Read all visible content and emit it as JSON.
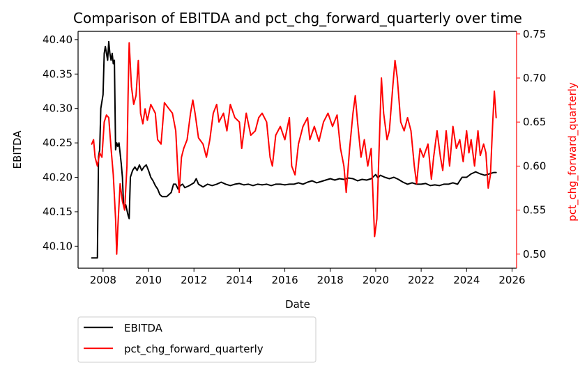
{
  "chart_data": {
    "type": "line",
    "title": "Comparison of EBITDA and pct_chg_forward_quarterly over time",
    "xlabel": "Date",
    "ylabel_left": "EBITDA",
    "ylabel_right": "pct_chg_forward_quarterly",
    "x_range": [
      2006.9,
      2026.2
    ],
    "ylim_left": [
      40.068,
      40.412
    ],
    "ylim_right": [
      0.484,
      0.753
    ],
    "x_ticks": [
      {
        "value": 2008,
        "label": "2008"
      },
      {
        "value": 2010,
        "label": "2010"
      },
      {
        "value": 2012,
        "label": "2012"
      },
      {
        "value": 2014,
        "label": "2014"
      },
      {
        "value": 2016,
        "label": "2016"
      },
      {
        "value": 2018,
        "label": "2018"
      },
      {
        "value": 2020,
        "label": "2020"
      },
      {
        "value": 2022,
        "label": "2022"
      },
      {
        "value": 2024,
        "label": "2024"
      },
      {
        "value": 2026,
        "label": "2026"
      }
    ],
    "y_left_ticks": [
      {
        "value": 40.1,
        "label": "40.10"
      },
      {
        "value": 40.15,
        "label": "40.15"
      },
      {
        "value": 40.2,
        "label": "40.20"
      },
      {
        "value": 40.25,
        "label": "40.25"
      },
      {
        "value": 40.3,
        "label": "40.30"
      },
      {
        "value": 40.35,
        "label": "40.35"
      },
      {
        "value": 40.4,
        "label": "40.40"
      }
    ],
    "y_right_ticks": [
      {
        "value": 0.5,
        "label": "0.50"
      },
      {
        "value": 0.55,
        "label": "0.55"
      },
      {
        "value": 0.6,
        "label": "0.60"
      },
      {
        "value": 0.65,
        "label": "0.65"
      },
      {
        "value": 0.7,
        "label": "0.70"
      },
      {
        "value": 0.75,
        "label": "0.75"
      }
    ],
    "grid": false,
    "legend_position": "below-left",
    "series": [
      {
        "name": "EBITDA",
        "axis": "left",
        "color": "#000000",
        "points": [
          [
            2007.5,
            40.083
          ],
          [
            2007.58,
            40.083
          ],
          [
            2007.75,
            40.083
          ],
          [
            2007.8,
            40.23
          ],
          [
            2007.85,
            40.24
          ],
          [
            2007.9,
            40.3
          ],
          [
            2007.95,
            40.31
          ],
          [
            2008.0,
            40.32
          ],
          [
            2008.05,
            40.38
          ],
          [
            2008.1,
            40.39
          ],
          [
            2008.15,
            40.38
          ],
          [
            2008.2,
            40.37
          ],
          [
            2008.25,
            40.397
          ],
          [
            2008.3,
            40.38
          ],
          [
            2008.35,
            40.37
          ],
          [
            2008.4,
            40.38
          ],
          [
            2008.45,
            40.365
          ],
          [
            2008.5,
            40.37
          ],
          [
            2008.55,
            40.24
          ],
          [
            2008.6,
            40.25
          ],
          [
            2008.65,
            40.245
          ],
          [
            2008.7,
            40.25
          ],
          [
            2008.75,
            40.235
          ],
          [
            2008.8,
            40.22
          ],
          [
            2008.85,
            40.2
          ],
          [
            2008.9,
            40.16
          ],
          [
            2008.95,
            40.155
          ],
          [
            2009.0,
            40.16
          ],
          [
            2009.1,
            40.145
          ],
          [
            2009.15,
            40.14
          ],
          [
            2009.2,
            40.2
          ],
          [
            2009.3,
            40.21
          ],
          [
            2009.4,
            40.215
          ],
          [
            2009.5,
            40.21
          ],
          [
            2009.6,
            40.218
          ],
          [
            2009.7,
            40.21
          ],
          [
            2009.8,
            40.215
          ],
          [
            2009.9,
            40.218
          ],
          [
            2010.0,
            40.21
          ],
          [
            2010.1,
            40.2
          ],
          [
            2010.2,
            40.195
          ],
          [
            2010.3,
            40.188
          ],
          [
            2010.4,
            40.183
          ],
          [
            2010.5,
            40.175
          ],
          [
            2010.6,
            40.172
          ],
          [
            2010.8,
            40.172
          ],
          [
            2010.9,
            40.175
          ],
          [
            2011.0,
            40.178
          ],
          [
            2011.1,
            40.19
          ],
          [
            2011.2,
            40.19
          ],
          [
            2011.3,
            40.183
          ],
          [
            2011.4,
            40.188
          ],
          [
            2011.5,
            40.19
          ],
          [
            2011.6,
            40.185
          ],
          [
            2011.8,
            40.188
          ],
          [
            2012.0,
            40.192
          ],
          [
            2012.1,
            40.198
          ],
          [
            2012.2,
            40.19
          ],
          [
            2012.4,
            40.186
          ],
          [
            2012.6,
            40.19
          ],
          [
            2012.8,
            40.188
          ],
          [
            2013.0,
            40.19
          ],
          [
            2013.2,
            40.193
          ],
          [
            2013.4,
            40.19
          ],
          [
            2013.6,
            40.188
          ],
          [
            2013.8,
            40.19
          ],
          [
            2014.0,
            40.191
          ],
          [
            2014.2,
            40.189
          ],
          [
            2014.4,
            40.19
          ],
          [
            2014.6,
            40.188
          ],
          [
            2014.8,
            40.19
          ],
          [
            2015.0,
            40.189
          ],
          [
            2015.2,
            40.19
          ],
          [
            2015.4,
            40.188
          ],
          [
            2015.6,
            40.19
          ],
          [
            2015.8,
            40.19
          ],
          [
            2016.0,
            40.189
          ],
          [
            2016.2,
            40.19
          ],
          [
            2016.4,
            40.19
          ],
          [
            2016.6,
            40.192
          ],
          [
            2016.8,
            40.19
          ],
          [
            2017.0,
            40.193
          ],
          [
            2017.2,
            40.195
          ],
          [
            2017.4,
            40.192
          ],
          [
            2017.6,
            40.194
          ],
          [
            2017.8,
            40.196
          ],
          [
            2018.0,
            40.198
          ],
          [
            2018.2,
            40.196
          ],
          [
            2018.4,
            40.198
          ],
          [
            2018.6,
            40.197
          ],
          [
            2018.8,
            40.199
          ],
          [
            2019.0,
            40.198
          ],
          [
            2019.2,
            40.195
          ],
          [
            2019.4,
            40.197
          ],
          [
            2019.6,
            40.196
          ],
          [
            2019.8,
            40.198
          ],
          [
            2020.0,
            40.204
          ],
          [
            2020.1,
            40.199
          ],
          [
            2020.2,
            40.203
          ],
          [
            2020.4,
            40.2
          ],
          [
            2020.6,
            40.198
          ],
          [
            2020.8,
            40.2
          ],
          [
            2021.0,
            40.197
          ],
          [
            2021.2,
            40.193
          ],
          [
            2021.4,
            40.19
          ],
          [
            2021.6,
            40.192
          ],
          [
            2021.8,
            40.19
          ],
          [
            2022.0,
            40.19
          ],
          [
            2022.2,
            40.191
          ],
          [
            2022.4,
            40.188
          ],
          [
            2022.6,
            40.189
          ],
          [
            2022.8,
            40.188
          ],
          [
            2023.0,
            40.19
          ],
          [
            2023.2,
            40.19
          ],
          [
            2023.4,
            40.192
          ],
          [
            2023.6,
            40.19
          ],
          [
            2023.8,
            40.2
          ],
          [
            2024.0,
            40.2
          ],
          [
            2024.2,
            40.205
          ],
          [
            2024.4,
            40.208
          ],
          [
            2024.6,
            40.205
          ],
          [
            2024.8,
            40.203
          ],
          [
            2025.0,
            40.205
          ],
          [
            2025.2,
            40.207
          ],
          [
            2025.3,
            40.207
          ]
        ]
      },
      {
        "name": "pct_chg_forward_quarterly",
        "axis": "right",
        "color": "#ff0000",
        "points": [
          [
            2007.5,
            0.625
          ],
          [
            2007.58,
            0.63
          ],
          [
            2007.65,
            0.61
          ],
          [
            2007.75,
            0.6
          ],
          [
            2007.85,
            0.615
          ],
          [
            2007.95,
            0.61
          ],
          [
            2008.05,
            0.65
          ],
          [
            2008.15,
            0.658
          ],
          [
            2008.25,
            0.655
          ],
          [
            2008.35,
            0.62
          ],
          [
            2008.45,
            0.59
          ],
          [
            2008.55,
            0.54
          ],
          [
            2008.6,
            0.5
          ],
          [
            2008.65,
            0.53
          ],
          [
            2008.75,
            0.58
          ],
          [
            2008.85,
            0.56
          ],
          [
            2008.95,
            0.55
          ],
          [
            2009.05,
            0.6
          ],
          [
            2009.1,
            0.68
          ],
          [
            2009.15,
            0.74
          ],
          [
            2009.25,
            0.69
          ],
          [
            2009.35,
            0.67
          ],
          [
            2009.45,
            0.68
          ],
          [
            2009.55,
            0.72
          ],
          [
            2009.65,
            0.66
          ],
          [
            2009.75,
            0.648
          ],
          [
            2009.85,
            0.665
          ],
          [
            2009.95,
            0.652
          ],
          [
            2010.1,
            0.67
          ],
          [
            2010.3,
            0.66
          ],
          [
            2010.4,
            0.63
          ],
          [
            2010.55,
            0.625
          ],
          [
            2010.7,
            0.672
          ],
          [
            2010.9,
            0.665
          ],
          [
            2011.05,
            0.66
          ],
          [
            2011.2,
            0.64
          ],
          [
            2011.3,
            0.59
          ],
          [
            2011.35,
            0.57
          ],
          [
            2011.45,
            0.61
          ],
          [
            2011.55,
            0.62
          ],
          [
            2011.7,
            0.63
          ],
          [
            2011.85,
            0.66
          ],
          [
            2011.95,
            0.675
          ],
          [
            2012.05,
            0.66
          ],
          [
            2012.2,
            0.632
          ],
          [
            2012.4,
            0.625
          ],
          [
            2012.55,
            0.61
          ],
          [
            2012.7,
            0.63
          ],
          [
            2012.85,
            0.66
          ],
          [
            2013.0,
            0.67
          ],
          [
            2013.1,
            0.65
          ],
          [
            2013.3,
            0.66
          ],
          [
            2013.45,
            0.64
          ],
          [
            2013.6,
            0.67
          ],
          [
            2013.8,
            0.655
          ],
          [
            2014.0,
            0.65
          ],
          [
            2014.1,
            0.62
          ],
          [
            2014.3,
            0.66
          ],
          [
            2014.5,
            0.635
          ],
          [
            2014.7,
            0.64
          ],
          [
            2014.85,
            0.655
          ],
          [
            2015.0,
            0.66
          ],
          [
            2015.2,
            0.65
          ],
          [
            2015.35,
            0.61
          ],
          [
            2015.45,
            0.6
          ],
          [
            2015.6,
            0.635
          ],
          [
            2015.8,
            0.645
          ],
          [
            2016.0,
            0.63
          ],
          [
            2016.2,
            0.655
          ],
          [
            2016.3,
            0.6
          ],
          [
            2016.45,
            0.59
          ],
          [
            2016.6,
            0.625
          ],
          [
            2016.8,
            0.645
          ],
          [
            2017.0,
            0.655
          ],
          [
            2017.1,
            0.63
          ],
          [
            2017.3,
            0.645
          ],
          [
            2017.5,
            0.628
          ],
          [
            2017.7,
            0.65
          ],
          [
            2017.9,
            0.66
          ],
          [
            2018.1,
            0.645
          ],
          [
            2018.3,
            0.658
          ],
          [
            2018.45,
            0.62
          ],
          [
            2018.6,
            0.6
          ],
          [
            2018.7,
            0.57
          ],
          [
            2018.85,
            0.62
          ],
          [
            2019.0,
            0.66
          ],
          [
            2019.1,
            0.68
          ],
          [
            2019.2,
            0.65
          ],
          [
            2019.35,
            0.61
          ],
          [
            2019.5,
            0.63
          ],
          [
            2019.65,
            0.6
          ],
          [
            2019.8,
            0.62
          ],
          [
            2019.95,
            0.52
          ],
          [
            2020.05,
            0.54
          ],
          [
            2020.15,
            0.62
          ],
          [
            2020.25,
            0.7
          ],
          [
            2020.35,
            0.66
          ],
          [
            2020.5,
            0.63
          ],
          [
            2020.6,
            0.64
          ],
          [
            2020.75,
            0.69
          ],
          [
            2020.85,
            0.72
          ],
          [
            2020.95,
            0.7
          ],
          [
            2021.1,
            0.65
          ],
          [
            2021.25,
            0.64
          ],
          [
            2021.4,
            0.655
          ],
          [
            2021.55,
            0.64
          ],
          [
            2021.7,
            0.6
          ],
          [
            2021.8,
            0.58
          ],
          [
            2021.95,
            0.62
          ],
          [
            2022.1,
            0.61
          ],
          [
            2022.3,
            0.625
          ],
          [
            2022.45,
            0.585
          ],
          [
            2022.55,
            0.61
          ],
          [
            2022.7,
            0.64
          ],
          [
            2022.85,
            0.61
          ],
          [
            2022.95,
            0.595
          ],
          [
            2023.1,
            0.64
          ],
          [
            2023.25,
            0.6
          ],
          [
            2023.4,
            0.645
          ],
          [
            2023.55,
            0.62
          ],
          [
            2023.7,
            0.63
          ],
          [
            2023.85,
            0.605
          ],
          [
            2024.0,
            0.64
          ],
          [
            2024.1,
            0.615
          ],
          [
            2024.2,
            0.63
          ],
          [
            2024.35,
            0.6
          ],
          [
            2024.5,
            0.64
          ],
          [
            2024.6,
            0.612
          ],
          [
            2024.75,
            0.625
          ],
          [
            2024.85,
            0.615
          ],
          [
            2024.95,
            0.575
          ],
          [
            2025.05,
            0.59
          ],
          [
            2025.15,
            0.65
          ],
          [
            2025.22,
            0.685
          ],
          [
            2025.3,
            0.655
          ]
        ]
      }
    ]
  }
}
